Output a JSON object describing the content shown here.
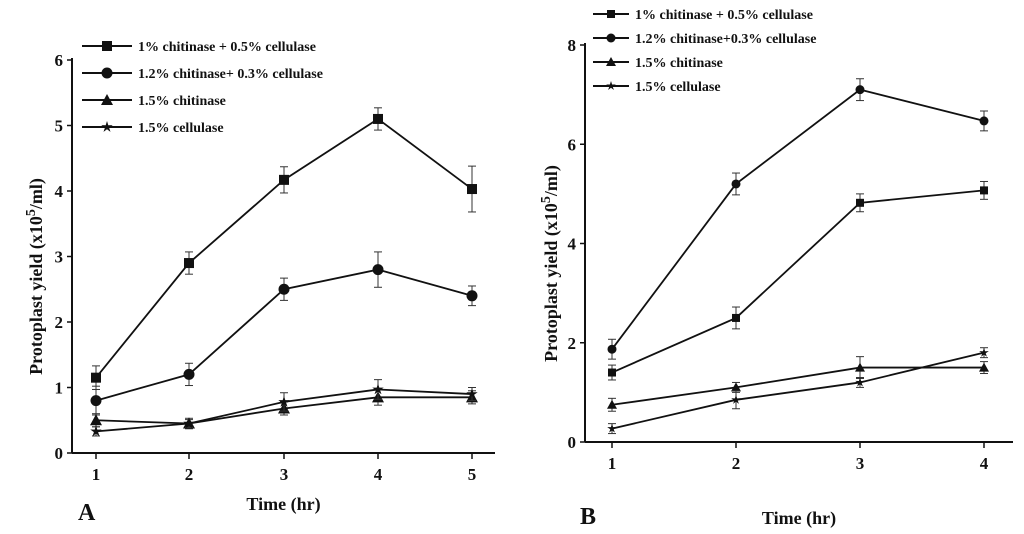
{
  "chart_data": [
    {
      "panel": "A",
      "type": "line",
      "xlabel": "Time (hr)",
      "ylabel": "Protoplast yield (x10^5/ml)",
      "ylabel_main": "Protoplast yield (x10",
      "ylabel_sup": "5",
      "ylabel_end": "/ml)",
      "x": [
        1,
        2,
        3,
        4,
        5
      ],
      "xticks": [
        "1",
        "2",
        "3",
        "4",
        "5"
      ],
      "ylim": [
        0,
        6
      ],
      "yticks": [
        "0",
        "1",
        "2",
        "3",
        "4",
        "5",
        "6"
      ],
      "grid": false,
      "legend_position": "top-left",
      "series": [
        {
          "name": "1% chitinase + 0.5% cellulase",
          "marker": "square",
          "values": [
            1.15,
            2.9,
            4.17,
            5.1,
            4.03
          ],
          "errors": [
            0.18,
            0.17,
            0.2,
            0.17,
            0.35
          ]
        },
        {
          "name": "1.2% chitinase+ 0.3% cellulase",
          "marker": "circle",
          "values": [
            0.8,
            1.2,
            2.5,
            2.8,
            2.4
          ],
          "errors": [
            0.22,
            0.17,
            0.17,
            0.27,
            0.15
          ]
        },
        {
          "name": "1.5% chitinase",
          "marker": "triangle",
          "values": [
            0.5,
            0.45,
            0.68,
            0.85,
            0.85
          ],
          "errors": [
            0.1,
            0.08,
            0.1,
            0.12,
            0.1
          ]
        },
        {
          "name": "1.5% cellulase",
          "marker": "star",
          "values": [
            0.33,
            0.45,
            0.78,
            0.97,
            0.9
          ],
          "errors": [
            0.07,
            0.06,
            0.14,
            0.15,
            0.1
          ]
        }
      ]
    },
    {
      "panel": "B",
      "type": "line",
      "xlabel": "Time (hr)",
      "ylabel": "Protoplast yield (x10^5/ml)",
      "ylabel_main": "Protoplast yield (x10",
      "ylabel_sup": "5",
      "ylabel_end": "/ml)",
      "x": [
        1,
        2,
        3,
        4
      ],
      "xticks": [
        "1",
        "2",
        "3",
        "4"
      ],
      "ylim": [
        0,
        8
      ],
      "yticks": [
        "0",
        "2",
        "4",
        "6",
        "8"
      ],
      "grid": false,
      "legend_position": "top-left",
      "series": [
        {
          "name": "1% chitinase + 0.5% cellulase",
          "marker": "square",
          "values": [
            1.4,
            2.5,
            4.82,
            5.07
          ],
          "errors": [
            0.15,
            0.22,
            0.18,
            0.18
          ]
        },
        {
          "name": "1.2% chitinase+0.3% cellulase",
          "marker": "circle",
          "values": [
            1.87,
            5.2,
            7.1,
            6.47
          ],
          "errors": [
            0.2,
            0.22,
            0.22,
            0.2
          ]
        },
        {
          "name": "1.5% chitinase",
          "marker": "triangle",
          "values": [
            0.75,
            1.1,
            1.5,
            1.5
          ],
          "errors": [
            0.13,
            0.1,
            0.22,
            0.12
          ]
        },
        {
          "name": "1.5% cellulase",
          "marker": "star",
          "values": [
            0.27,
            0.85,
            1.2,
            1.8
          ],
          "errors": [
            0.1,
            0.18,
            0.1,
            0.1
          ]
        }
      ]
    }
  ]
}
